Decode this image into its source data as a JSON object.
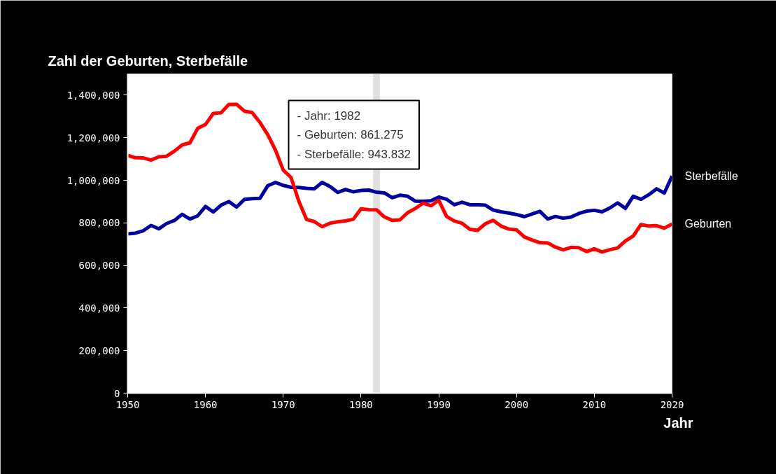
{
  "chart_data": {
    "type": "line",
    "title": "Zahl der Geburten, Sterbefälle",
    "xlabel": "Jahr",
    "x": [
      1950,
      1951,
      1952,
      1953,
      1954,
      1955,
      1956,
      1957,
      1958,
      1959,
      1960,
      1961,
      1962,
      1963,
      1964,
      1965,
      1966,
      1967,
      1968,
      1969,
      1970,
      1971,
      1972,
      1973,
      1974,
      1975,
      1976,
      1977,
      1978,
      1979,
      1980,
      1981,
      1982,
      1983,
      1984,
      1985,
      1986,
      1987,
      1988,
      1989,
      1990,
      1991,
      1992,
      1993,
      1994,
      1995,
      1996,
      1997,
      1998,
      1999,
      2000,
      2001,
      2002,
      2003,
      2004,
      2005,
      2006,
      2007,
      2008,
      2009,
      2010,
      2011,
      2012,
      2013,
      2014,
      2015,
      2016,
      2017,
      2018,
      2019,
      2020
    ],
    "series": [
      {
        "name": "Sterbefälle",
        "color": "#0000a0",
        "values": [
          748000,
          752000,
          763000,
          788000,
          772000,
          797000,
          811000,
          840000,
          818000,
          833000,
          877000,
          851000,
          883000,
          900000,
          874000,
          910000,
          914000,
          915000,
          974000,
          990000,
          976000,
          967000,
          966000,
          962000,
          960000,
          990000,
          971000,
          943000,
          957000,
          946000,
          952000,
          954000,
          943832,
          941000,
          918000,
          930000,
          925000,
          902000,
          901000,
          904000,
          921000,
          911000,
          885000,
          897000,
          885000,
          885000,
          883000,
          860000,
          852000,
          846000,
          839000,
          829000,
          842000,
          854000,
          818000,
          830000,
          822000,
          827000,
          844000,
          855000,
          859000,
          852000,
          870000,
          894000,
          868000,
          925000,
          911000,
          932000,
          960000,
          940000,
          1020000
        ]
      },
      {
        "name": "Geburten",
        "color": "#ff0000",
        "values": [
          1117000,
          1106000,
          1105000,
          1095000,
          1110000,
          1113000,
          1137000,
          1166000,
          1176000,
          1244000,
          1262000,
          1314000,
          1317000,
          1356000,
          1357000,
          1325000,
          1318000,
          1272000,
          1215000,
          1142000,
          1048000,
          1013000,
          902000,
          816000,
          806000,
          782000,
          798000,
          805000,
          809000,
          817000,
          866000,
          862000,
          861275,
          828000,
          812000,
          814000,
          848000,
          868000,
          893000,
          880000,
          906000,
          830000,
          809000,
          798000,
          770000,
          765000,
          796000,
          812000,
          785000,
          771000,
          767000,
          734000,
          719000,
          707000,
          706000,
          686000,
          673000,
          685000,
          683000,
          665000,
          678000,
          663000,
          674000,
          682000,
          715000,
          738000,
          792000,
          785000,
          787000,
          775000,
          795000
        ]
      }
    ],
    "xlim": [
      1950,
      2020
    ],
    "xticks": [
      1950,
      1960,
      1970,
      1980,
      1990,
      2000,
      2010,
      2020
    ],
    "ylim": [
      0,
      1500000
    ],
    "yticks": [
      {
        "value": 0,
        "label": "0"
      },
      {
        "value": 200000,
        "label": "200,000"
      },
      {
        "value": 400000,
        "label": "400,000"
      },
      {
        "value": 600000,
        "label": "600,000"
      },
      {
        "value": 800000,
        "label": "800,000"
      },
      {
        "value": 1000000,
        "label": "1,000,000"
      },
      {
        "value": 1200000,
        "label": "1,200,000"
      },
      {
        "value": 1400000,
        "label": "1,400,000"
      }
    ],
    "ref_lines": [
      {
        "axis": "x",
        "value": 1982,
        "color": "#e0e0e0"
      }
    ],
    "annotations": [
      "- Jahr: 1982\n- Geburten: 861.275\n- Sterbefälle: 943.832"
    ],
    "grid": false,
    "line_style": "solid",
    "marker": "none"
  }
}
